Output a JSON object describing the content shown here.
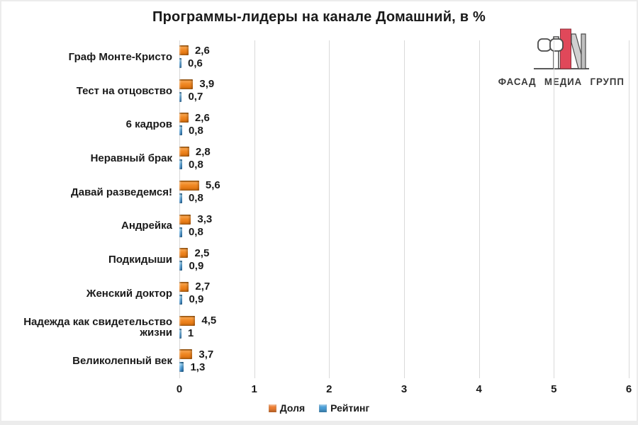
{
  "title": "Программы-лидеры на канале Домашний, в %",
  "logo": {
    "text": "ФАСАД МЕДИА ГРУПП",
    "icon": "fasad-media-group-monogram-icon",
    "accent_red": "#E0485A",
    "accent_gray": "#C8C8C8"
  },
  "colors": {
    "share_orange": "#ED7D31",
    "rating_blue": "#4A9FD8",
    "gridline": "#D9D9D9",
    "text": "#1A1A1A",
    "background": "#FFFFFF"
  },
  "chart_data": {
    "type": "bar",
    "orientation": "horizontal",
    "title": "Программы-лидеры на канале Домашний, в %",
    "categories": [
      "Граф Монте-Кристо",
      "Тест на отцовство",
      "6 кадров",
      "Неравный брак",
      "Давай разведемся!",
      "Андрейка",
      "Подкидыши",
      "Женский доктор",
      "Надежда как свидетельство жизни",
      "Великолепный век"
    ],
    "series": [
      {
        "name": "Доля",
        "color": "#ED7D31",
        "values": [
          2.6,
          3.9,
          2.6,
          2.8,
          5.6,
          3.3,
          2.5,
          2.7,
          4.5,
          3.7
        ],
        "labels": [
          "2,6",
          "3,9",
          "2,6",
          "2,8",
          "5,6",
          "3,3",
          "2,5",
          "2,7",
          "4,5",
          "3,7"
        ]
      },
      {
        "name": "Рейтинг",
        "color": "#4A9FD8",
        "values": [
          0.6,
          0.7,
          0.8,
          0.8,
          0.8,
          0.8,
          0.9,
          0.9,
          1,
          1.3
        ],
        "labels": [
          "0,6",
          "0,7",
          "0,8",
          "0,8",
          "0,8",
          "0,8",
          "0,9",
          "0,9",
          "1",
          "1,3"
        ]
      }
    ],
    "xlabel": "",
    "ylabel": "",
    "xlim": [
      0,
      6
    ],
    "xticks": [
      "0",
      "1",
      "2",
      "3",
      "4",
      "5",
      "6"
    ],
    "grid": "vertical",
    "legend_position": "bottom-center",
    "data_labels": "outside-end"
  }
}
